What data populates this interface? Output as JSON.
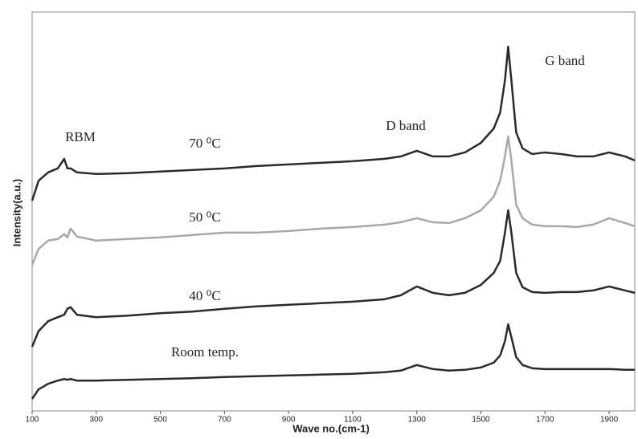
{
  "chart_data": {
    "type": "line",
    "x_label": "Wave no.(cm-1)",
    "y_label": "Intensity(a.u.)",
    "annotations": [
      "RBM",
      "D band",
      "G band",
      "70 ⁰C",
      "50 ⁰C",
      "40 ⁰C",
      "Room temp."
    ],
    "xlim": [
      100,
      1980
    ],
    "ylim": [
      0,
      100
    ],
    "xticks": [
      100,
      300,
      500,
      700,
      900,
      1100,
      1300,
      1500,
      1700,
      1900
    ],
    "x": [
      100,
      120,
      150,
      180,
      200,
      210,
      220,
      240,
      300,
      400,
      500,
      600,
      700,
      800,
      900,
      1000,
      1100,
      1200,
      1250,
      1300,
      1350,
      1400,
      1450,
      1500,
      1540,
      1560,
      1575,
      1585,
      1595,
      1610,
      1630,
      1660,
      1700,
      1750,
      1800,
      1850,
      1900,
      1950,
      1980
    ],
    "series": [
      {
        "name": "70 ⁰C",
        "color": "#2a2a2a",
        "values": [
          52.7,
          57.7,
          59.8,
          60.8,
          63.2,
          60.8,
          60.8,
          59.8,
          59.4,
          59.6,
          60.0,
          60.4,
          60.8,
          61.4,
          61.8,
          62.2,
          62.6,
          63.2,
          63.8,
          65.2,
          63.8,
          63.8,
          64.8,
          67.2,
          70.8,
          74.8,
          82.9,
          91.3,
          82.9,
          69.8,
          65.8,
          64.4,
          64.8,
          64.4,
          63.8,
          63.8,
          64.8,
          63.8,
          62.8
        ]
      },
      {
        "name": "50 ⁰C",
        "color": "#a8a8a8",
        "values": [
          36.6,
          40.6,
          42.7,
          43.1,
          44.3,
          43.5,
          45.7,
          43.7,
          42.7,
          43.1,
          43.5,
          44.1,
          44.7,
          44.7,
          45.1,
          45.7,
          46.1,
          46.7,
          47.3,
          48.3,
          47.3,
          47.1,
          48.3,
          50.3,
          53.7,
          57.7,
          63.8,
          68.8,
          62.8,
          51.7,
          48.3,
          46.7,
          46.3,
          46.3,
          46.1,
          46.7,
          48.3,
          47.1,
          46.3
        ]
      },
      {
        "name": "40 ⁰C",
        "color": "#2a2a2a",
        "values": [
          16.1,
          20.0,
          22.5,
          23.5,
          24.1,
          25.6,
          26.0,
          24.1,
          23.5,
          23.9,
          24.5,
          24.9,
          25.6,
          26.2,
          26.6,
          27.0,
          27.4,
          28.0,
          29.0,
          31.2,
          29.6,
          29.0,
          29.6,
          31.6,
          34.6,
          37.6,
          44.7,
          50.3,
          44.7,
          34.6,
          31.0,
          29.8,
          29.6,
          29.8,
          29.8,
          30.2,
          31.2,
          30.2,
          29.6
        ]
      },
      {
        "name": "Room temp.",
        "color": "#2a2a2a",
        "values": [
          3.0,
          5.4,
          6.8,
          7.6,
          8.0,
          7.8,
          8.0,
          7.6,
          7.6,
          7.8,
          8.0,
          8.2,
          8.5,
          8.7,
          8.9,
          9.1,
          9.3,
          9.7,
          10.1,
          11.5,
          10.5,
          10.1,
          10.3,
          10.9,
          12.1,
          13.9,
          17.5,
          21.7,
          18.5,
          13.5,
          11.5,
          10.7,
          10.5,
          10.5,
          10.5,
          10.5,
          10.5,
          10.3,
          10.3
        ]
      }
    ]
  }
}
